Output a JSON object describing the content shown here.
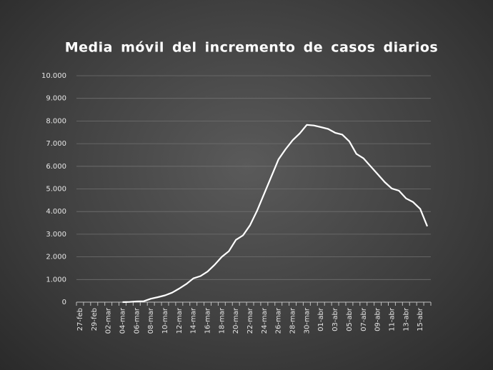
{
  "chart_data": {
    "type": "line",
    "title": "Media móvil del incremento de casos diarios",
    "categories": [
      "27-feb",
      null,
      "29-feb",
      null,
      "02-mar",
      null,
      "04-mar",
      null,
      "06-mar",
      null,
      "08-mar",
      null,
      "10-mar",
      null,
      "12-mar",
      null,
      "14-mar",
      null,
      "16-mar",
      null,
      "18-mar",
      null,
      "20-mar",
      null,
      "22-mar",
      null,
      "24-mar",
      null,
      "26-mar",
      null,
      "28-mar",
      null,
      "30-mar",
      null,
      "01-abr",
      null,
      "03-abr",
      null,
      "05-abr",
      null,
      "07-abr",
      null,
      "09-abr",
      null,
      "11-abr",
      null,
      "13-abr",
      null,
      "15-abr",
      null
    ],
    "series": [
      {
        "name": null,
        "color": "#ffffff",
        "values": [
          null,
          null,
          null,
          null,
          null,
          null,
          0,
          10,
          30,
          40,
          150,
          220,
          300,
          420,
          600,
          800,
          1050,
          1150,
          1350,
          1650,
          2000,
          2250,
          2750,
          2950,
          3400,
          4050,
          4800,
          5550,
          6300,
          6750,
          7150,
          7450,
          7830,
          7800,
          7730,
          7650,
          7480,
          7400,
          7100,
          6550,
          6350,
          6000,
          5650,
          5300,
          5020,
          4920,
          4580,
          4420,
          4120,
          3350
        ]
      }
    ],
    "ylim": [
      0,
      10000
    ],
    "yticks": [
      0,
      {
        "value": 1000,
        "label": "1.000"
      },
      {
        "value": 2000,
        "label": "2.000"
      },
      {
        "value": 3000,
        "label": "3.000"
      },
      {
        "value": 4000,
        "label": "4.000"
      },
      {
        "value": 5000,
        "label": "5.000"
      },
      {
        "value": 6000,
        "label": "6.000"
      },
      {
        "value": 7000,
        "label": "7.000"
      },
      {
        "value": 8000,
        "label": "8.000"
      },
      {
        "value": 9000,
        "label": "9.000"
      },
      {
        "value": 10000,
        "label": "10.000"
      }
    ],
    "grid": true
  }
}
